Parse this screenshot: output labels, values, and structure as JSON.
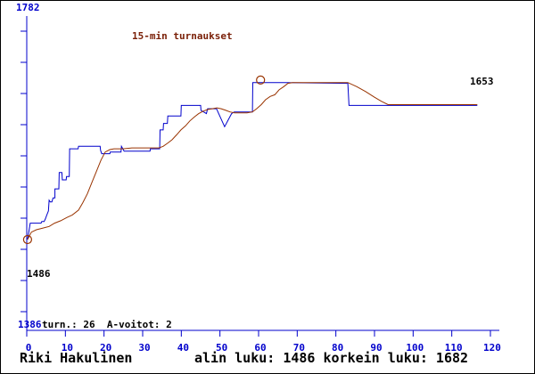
{
  "window": {
    "bg": "#ffffff",
    "border_color": "#000000"
  },
  "title": "15-min turnaukset",
  "colors": {
    "axis_blue": "#0000cc",
    "rating_blue": "#0000cc",
    "average_dark_red": "#993300",
    "title_dark_red": "#7a2008",
    "text_black": "#000000"
  },
  "y_axis": {
    "top_label": "1782",
    "bottom_label": "1386"
  },
  "x_axis": {
    "tick_labels": [
      "0",
      "10",
      "20",
      "30",
      "40",
      "50",
      "60",
      "70",
      "80",
      "90",
      "100",
      "110",
      "120"
    ]
  },
  "annotations": {
    "min_label": "1486",
    "last_label": "1653"
  },
  "stats_line": "turn.: 26  A-voitot: 2",
  "footer": {
    "player": "Riki Hakulinen",
    "range": "alin luku: 1486 korkein luku: 1682"
  },
  "chart_data": {
    "type": "line",
    "title": "15-min turnaukset",
    "xlabel": "",
    "ylabel": "",
    "x_ticks": [
      0,
      10,
      20,
      30,
      40,
      50,
      60,
      70,
      80,
      90,
      100,
      110,
      120
    ],
    "x_range": [
      0,
      122
    ],
    "y_top_value": 1782,
    "y_bottom_value": 1386,
    "min_value": 1486,
    "max_value": 1682,
    "last_value": 1653,
    "tournaments": 26,
    "a_wins": 2,
    "grid": false,
    "legend": false,
    "series": [
      {
        "name": "rating",
        "color": "#0000cc",
        "points": [
          [
            0.2,
            1486
          ],
          [
            0.9,
            1506
          ],
          [
            3.7,
            1506
          ],
          [
            3.9,
            1508
          ],
          [
            4.5,
            1508
          ],
          [
            4.8,
            1511
          ],
          [
            5.2,
            1516
          ],
          [
            5.6,
            1521
          ],
          [
            5.8,
            1534
          ],
          [
            6.1,
            1532
          ],
          [
            6.5,
            1532
          ],
          [
            6.8,
            1537
          ],
          [
            7.3,
            1537
          ],
          [
            7.3,
            1548
          ],
          [
            8.3,
            1548
          ],
          [
            8.4,
            1568
          ],
          [
            9.1,
            1568
          ],
          [
            9.2,
            1559
          ],
          [
            10.2,
            1559
          ],
          [
            10.3,
            1563
          ],
          [
            11.0,
            1563
          ],
          [
            11.1,
            1597
          ],
          [
            13.3,
            1597
          ],
          [
            13.4,
            1600
          ],
          [
            19.0,
            1600
          ],
          [
            19.1,
            1595
          ],
          [
            19.4,
            1591
          ],
          [
            21.5,
            1591
          ],
          [
            21.6,
            1593
          ],
          [
            24.4,
            1593
          ],
          [
            24.5,
            1600
          ],
          [
            25.2,
            1594
          ],
          [
            31.9,
            1594
          ],
          [
            32.0,
            1597
          ],
          [
            34.4,
            1597
          ],
          [
            34.5,
            1620
          ],
          [
            35.3,
            1620
          ],
          [
            35.4,
            1628
          ],
          [
            36.4,
            1628
          ],
          [
            36.5,
            1637
          ],
          [
            39.9,
            1637
          ],
          [
            40.0,
            1650
          ],
          [
            45.0,
            1650
          ],
          [
            45.1,
            1644
          ],
          [
            46.5,
            1640
          ],
          [
            46.8,
            1646
          ],
          [
            49.1,
            1646
          ],
          [
            51.2,
            1624
          ],
          [
            53.0,
            1640
          ],
          [
            53.7,
            1642
          ],
          [
            58.4,
            1642
          ],
          [
            58.5,
            1678
          ],
          [
            66.9,
            1678
          ],
          [
            83.1,
            1677
          ],
          [
            83.4,
            1650
          ],
          [
            93.0,
            1650
          ],
          [
            116.6,
            1650
          ]
        ]
      },
      {
        "name": "average",
        "color": "#993300",
        "points": [
          [
            0.2,
            1486
          ],
          [
            1.2,
            1495
          ],
          [
            2.5,
            1498
          ],
          [
            4.2,
            1500
          ],
          [
            5.8,
            1502
          ],
          [
            7.2,
            1506
          ],
          [
            8.8,
            1509
          ],
          [
            10.4,
            1513
          ],
          [
            11.8,
            1516
          ],
          [
            13.4,
            1522
          ],
          [
            14.5,
            1531
          ],
          [
            15.7,
            1542
          ],
          [
            16.8,
            1555
          ],
          [
            18.0,
            1569
          ],
          [
            19.2,
            1583
          ],
          [
            20.3,
            1593
          ],
          [
            21.5,
            1596
          ],
          [
            22.6,
            1597
          ],
          [
            24.9,
            1597
          ],
          [
            27.2,
            1598
          ],
          [
            29.5,
            1598
          ],
          [
            31.8,
            1598
          ],
          [
            34.2,
            1598
          ],
          [
            35.3,
            1600
          ],
          [
            36.5,
            1604
          ],
          [
            37.6,
            1608
          ],
          [
            38.8,
            1614
          ],
          [
            39.9,
            1620
          ],
          [
            41.1,
            1625
          ],
          [
            42.2,
            1631
          ],
          [
            43.4,
            1636
          ],
          [
            44.5,
            1640
          ],
          [
            45.7,
            1643
          ],
          [
            46.8,
            1645
          ],
          [
            48.0,
            1646
          ],
          [
            49.2,
            1647
          ],
          [
            50.3,
            1646
          ],
          [
            51.5,
            1644
          ],
          [
            52.6,
            1642
          ],
          [
            53.8,
            1641
          ],
          [
            55.4,
            1641
          ],
          [
            57.0,
            1641
          ],
          [
            58.4,
            1642
          ],
          [
            59.5,
            1646
          ],
          [
            60.7,
            1651
          ],
          [
            61.8,
            1657
          ],
          [
            63.0,
            1661
          ],
          [
            64.2,
            1663
          ],
          [
            65.3,
            1669
          ],
          [
            66.5,
            1673
          ],
          [
            67.6,
            1677
          ],
          [
            68.8,
            1678
          ],
          [
            83.1,
            1678
          ],
          [
            85.4,
            1673
          ],
          [
            87.7,
            1667
          ],
          [
            90.0,
            1660
          ],
          [
            91.8,
            1655
          ],
          [
            93.5,
            1651
          ],
          [
            116.6,
            1651
          ]
        ]
      }
    ],
    "markers": [
      {
        "name": "min-marker",
        "x": 0.2,
        "value": 1486
      },
      {
        "name": "max-marker",
        "x": 60.5,
        "value": 1681
      }
    ]
  }
}
